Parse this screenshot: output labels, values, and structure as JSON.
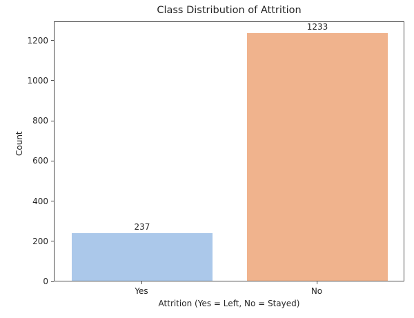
{
  "chart_data": {
    "type": "bar",
    "title": "Class Distribution of Attrition",
    "xlabel": "Attrition (Yes = Left, No = Stayed)",
    "ylabel": "Count",
    "categories": [
      "Yes",
      "No"
    ],
    "values": [
      237,
      1233
    ],
    "value_labels": [
      "237",
      "1233"
    ],
    "yticks": [
      0,
      200,
      400,
      600,
      800,
      1000,
      1200
    ],
    "ylim": [
      0,
      1295
    ],
    "grid": false,
    "legend": null,
    "bar_width_fraction": 0.8,
    "bar_colors": [
      "#abc8ea",
      "#f0b38d"
    ],
    "text_color": "#262626",
    "spine_color": "#4a4a4a",
    "background": "#ffffff"
  }
}
